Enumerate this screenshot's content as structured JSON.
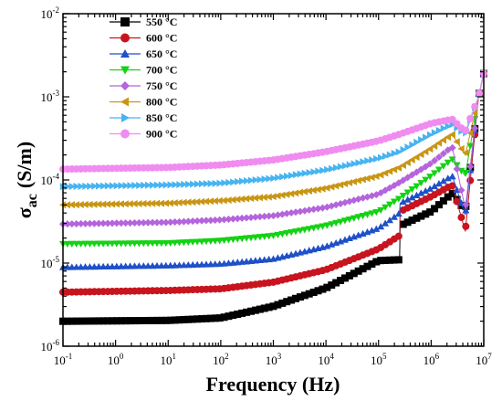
{
  "chart_data": {
    "type": "scatter",
    "xlabel": "Frequency (Hz)",
    "ylabel_main": "σ",
    "ylabel_sub": "ac",
    "ylabel_unit": "(S/m)",
    "x_scale": "log",
    "y_scale": "log",
    "xlim": [
      0.1,
      10000000
    ],
    "ylim": [
      1e-06,
      0.01
    ],
    "x_ticks": [
      {
        "base": "10",
        "exp": "-1"
      },
      {
        "base": "10",
        "exp": "0"
      },
      {
        "base": "10",
        "exp": "1"
      },
      {
        "base": "10",
        "exp": "2"
      },
      {
        "base": "10",
        "exp": "3"
      },
      {
        "base": "10",
        "exp": "4"
      },
      {
        "base": "10",
        "exp": "5"
      },
      {
        "base": "10",
        "exp": "6"
      },
      {
        "base": "10",
        "exp": "7"
      }
    ],
    "y_ticks": [
      {
        "base": "10",
        "exp": "-6"
      },
      {
        "base": "10",
        "exp": "-5"
      },
      {
        "base": "10",
        "exp": "-4"
      },
      {
        "base": "10",
        "exp": "-3"
      },
      {
        "base": "10",
        "exp": "-2"
      }
    ],
    "legend_position": "top-left",
    "grid": false,
    "series": [
      {
        "name": "550 °C",
        "color": "#000000",
        "marker": "square",
        "points": [
          [
            -1,
            -5.7
          ],
          [
            1,
            -5.69
          ],
          [
            2,
            -5.66
          ],
          [
            3,
            -5.52
          ],
          [
            4,
            -5.3
          ],
          [
            5,
            -4.97
          ],
          [
            5.4,
            -4.96
          ],
          [
            5.41,
            -4.55
          ],
          [
            6,
            -4.38
          ],
          [
            6.4,
            -4.16
          ],
          [
            6.65,
            -4.37
          ],
          [
            6.9,
            -3.0
          ],
          [
            7,
            -2.72
          ]
        ]
      },
      {
        "name": "600 °C",
        "color": "#c8141e",
        "marker": "circle",
        "points": [
          [
            -1,
            -5.35
          ],
          [
            1,
            -5.33
          ],
          [
            2,
            -5.31
          ],
          [
            3,
            -5.23
          ],
          [
            4,
            -5.08
          ],
          [
            5,
            -4.83
          ],
          [
            5.4,
            -4.67
          ],
          [
            5.41,
            -4.38
          ],
          [
            6,
            -4.2
          ],
          [
            6.4,
            -4.06
          ],
          [
            6.65,
            -4.62
          ],
          [
            6.9,
            -3.0
          ],
          [
            7,
            -2.72
          ]
        ]
      },
      {
        "name": "650 °C",
        "color": "#1e50c8",
        "marker": "triangle-up",
        "points": [
          [
            -1,
            -5.05
          ],
          [
            1,
            -5.03
          ],
          [
            2,
            -5.01
          ],
          [
            3,
            -4.95
          ],
          [
            4,
            -4.8
          ],
          [
            5,
            -4.58
          ],
          [
            5.4,
            -4.4
          ],
          [
            5.41,
            -4.28
          ],
          [
            6,
            -4.1
          ],
          [
            6.4,
            -3.95
          ],
          [
            6.65,
            -4.42
          ],
          [
            6.9,
            -3.0
          ],
          [
            7,
            -2.72
          ]
        ]
      },
      {
        "name": "700 °C",
        "color": "#14d214",
        "marker": "triangle-down",
        "points": [
          [
            -1,
            -4.77
          ],
          [
            1,
            -4.76
          ],
          [
            2,
            -4.73
          ],
          [
            3,
            -4.67
          ],
          [
            4,
            -4.55
          ],
          [
            5,
            -4.38
          ],
          [
            5.4,
            -4.22
          ],
          [
            6,
            -3.95
          ],
          [
            6.4,
            -3.75
          ],
          [
            6.65,
            -3.95
          ],
          [
            6.9,
            -3.0
          ],
          [
            7,
            -2.72
          ]
        ]
      },
      {
        "name": "750 °C",
        "color": "#b464dc",
        "marker": "diamond",
        "points": [
          [
            -1,
            -4.53
          ],
          [
            1,
            -4.51
          ],
          [
            2,
            -4.48
          ],
          [
            3,
            -4.43
          ],
          [
            4,
            -4.33
          ],
          [
            5,
            -4.17
          ],
          [
            5.4,
            -4.03
          ],
          [
            6,
            -3.8
          ],
          [
            6.4,
            -3.6
          ],
          [
            6.65,
            -4.35
          ],
          [
            6.9,
            -3.0
          ],
          [
            7,
            -2.72
          ]
        ]
      },
      {
        "name": "800 °C",
        "color": "#c89614",
        "marker": "triangle-left",
        "points": [
          [
            -1,
            -4.3
          ],
          [
            1,
            -4.28
          ],
          [
            2,
            -4.25
          ],
          [
            3,
            -4.2
          ],
          [
            4,
            -4.1
          ],
          [
            5,
            -3.95
          ],
          [
            5.4,
            -3.85
          ],
          [
            6,
            -3.62
          ],
          [
            6.4,
            -3.45
          ],
          [
            6.65,
            -3.7
          ],
          [
            6.9,
            -3.0
          ],
          [
            7,
            -2.72
          ]
        ]
      },
      {
        "name": "850 °C",
        "color": "#46b4f0",
        "marker": "triangle-right",
        "points": [
          [
            -1,
            -4.08
          ],
          [
            1,
            -4.06
          ],
          [
            2,
            -4.04
          ],
          [
            3,
            -3.98
          ],
          [
            4,
            -3.88
          ],
          [
            5,
            -3.74
          ],
          [
            5.4,
            -3.66
          ],
          [
            6,
            -3.45
          ],
          [
            6.4,
            -3.33
          ],
          [
            6.65,
            -3.45
          ],
          [
            6.9,
            -3.0
          ],
          [
            7,
            -2.72
          ]
        ]
      },
      {
        "name": "900 °C",
        "color": "#f08cf0",
        "marker": "circle",
        "points": [
          [
            -1,
            -3.87
          ],
          [
            1,
            -3.85
          ],
          [
            2,
            -3.82
          ],
          [
            3,
            -3.76
          ],
          [
            4,
            -3.66
          ],
          [
            5,
            -3.53
          ],
          [
            5.4,
            -3.45
          ],
          [
            6,
            -3.32
          ],
          [
            6.4,
            -3.27
          ],
          [
            6.65,
            -3.42
          ],
          [
            6.9,
            -3.0
          ],
          [
            7,
            -2.72
          ]
        ]
      }
    ]
  }
}
